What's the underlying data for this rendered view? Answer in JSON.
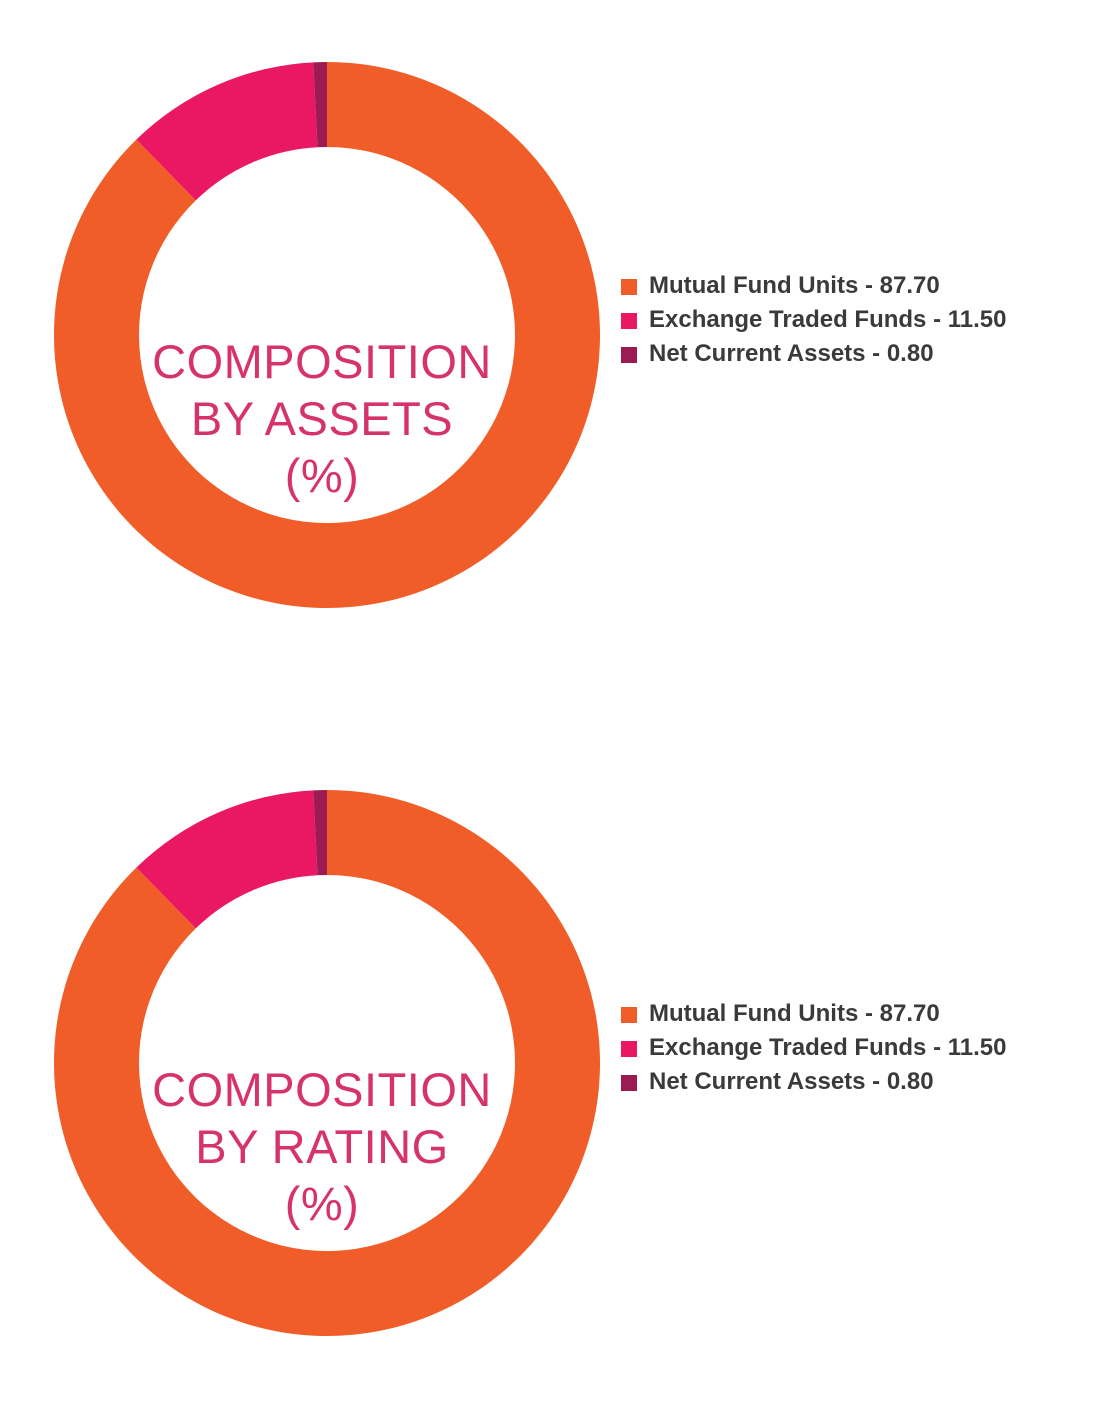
{
  "colors": {
    "mutual_fund_units": "#f15d28",
    "exchange_traded_funds": "#ea1763",
    "net_current_assets": "#9b1b52",
    "center_text": "#d6336c",
    "legend_text": "#3a3a3a"
  },
  "chart_data": [
    {
      "type": "pie",
      "style": "donut",
      "title_lines": [
        "COMPOSITION",
        "BY ASSETS",
        "(%)"
      ],
      "categories": [
        "Mutual Fund Units",
        "Exchange Traded Funds",
        "Net Current Assets"
      ],
      "values": [
        87.7,
        11.5,
        0.8
      ],
      "value_labels": [
        "87.70",
        "11.50",
        "0.80"
      ],
      "colors": [
        "#f15d28",
        "#ea1763",
        "#9b1b52"
      ],
      "legend": {
        "position": "right",
        "entries": [
          "Mutual Fund Units - 87.70",
          "Exchange Traded Funds - 11.50",
          "Net Current Assets - 0.80"
        ]
      }
    },
    {
      "type": "pie",
      "style": "donut",
      "title_lines": [
        "COMPOSITION",
        "BY RATING",
        "(%)"
      ],
      "categories": [
        "Mutual Fund Units",
        "Exchange Traded Funds",
        "Net Current Assets"
      ],
      "values": [
        87.7,
        11.5,
        0.8
      ],
      "value_labels": [
        "87.70",
        "11.50",
        "0.80"
      ],
      "colors": [
        "#f15d28",
        "#ea1763",
        "#9b1b52"
      ],
      "legend": {
        "position": "right",
        "entries": [
          "Mutual Fund Units - 87.70",
          "Exchange Traded Funds - 11.50",
          "Net Current Assets - 0.80"
        ]
      }
    }
  ]
}
